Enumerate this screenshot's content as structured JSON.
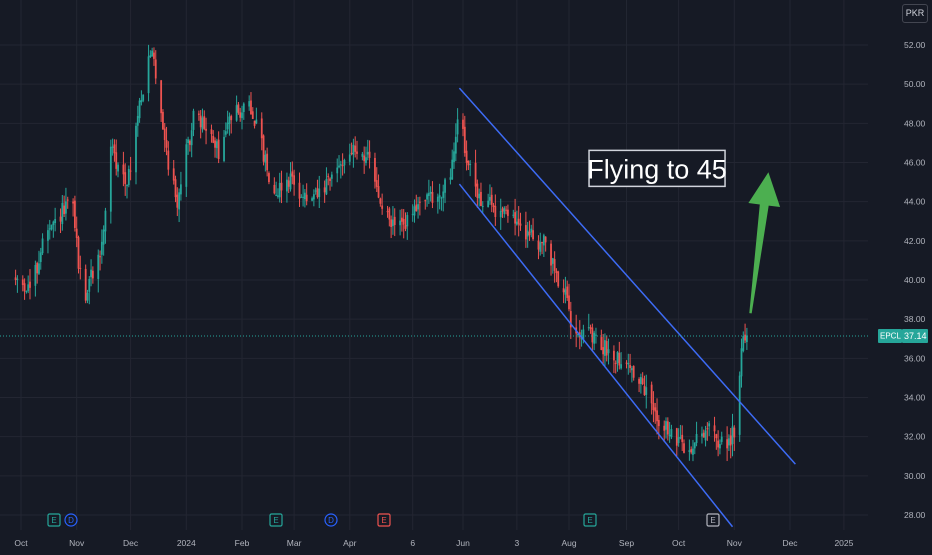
{
  "currency_button": "PKR",
  "annotation_text": "Flying to 45",
  "price_label": {
    "symbol": "EPCL",
    "value": "37.14"
  },
  "colors": {
    "background": "#161a25",
    "up": "#26a69a",
    "down": "#ef5350",
    "channel": "#3d6bf5",
    "arrow": "#4caf50",
    "grid": "#232632",
    "axis_text": "#b2b5be",
    "price_label_bg": "#26a69a"
  },
  "events": [
    {
      "letter": "E",
      "color": "#26a69a",
      "shape": "square",
      "date": "Oct 2023"
    },
    {
      "letter": "D",
      "color": "#2962ff",
      "shape": "circle",
      "date": "Oct 2023"
    },
    {
      "letter": "E",
      "color": "#26a69a",
      "shape": "square",
      "date": "Feb 2024"
    },
    {
      "letter": "D",
      "color": "#2962ff",
      "shape": "circle",
      "date": "Mar 2024"
    },
    {
      "letter": "E",
      "color": "#ef5350",
      "shape": "square",
      "date": "Apr 2024"
    },
    {
      "letter": "E",
      "color": "#26a69a",
      "shape": "square",
      "date": "Aug 2024"
    },
    {
      "letter": "E",
      "color": "#b2b5be",
      "shape": "square",
      "date": "Oct 2024"
    }
  ],
  "chart_data": {
    "type": "candlestick",
    "symbol": "EPCL",
    "currency": "PKR",
    "last_price": 37.14,
    "ylim": [
      27.5,
      54.5
    ],
    "y_ticks": [
      "28.00",
      "30.00",
      "32.00",
      "34.00",
      "36.00",
      "38.00",
      "40.00",
      "42.00",
      "44.00",
      "46.00",
      "48.00",
      "50.00",
      "52.00"
    ],
    "x_ticks": [
      {
        "label": "Oct",
        "date": "2023-10-01"
      },
      {
        "label": "Nov",
        "date": "2023-11-01"
      },
      {
        "label": "Dec",
        "date": "2023-12-01"
      },
      {
        "label": "2024",
        "date": "2024-01-01"
      },
      {
        "label": "Feb",
        "date": "2024-02-01"
      },
      {
        "label": "Mar",
        "date": "2024-03-01"
      },
      {
        "label": "Apr",
        "date": "2024-04-01"
      },
      {
        "label": "6",
        "date": "2024-05-06"
      },
      {
        "label": "Jun",
        "date": "2024-06-03"
      },
      {
        "label": "3",
        "date": "2024-07-03"
      },
      {
        "label": "Aug",
        "date": "2024-08-01"
      },
      {
        "label": "Sep",
        "date": "2024-09-02"
      },
      {
        "label": "Oct",
        "date": "2024-10-01"
      },
      {
        "label": "Nov",
        "date": "2024-11-01"
      },
      {
        "label": "Dec",
        "date": "2024-12-02"
      },
      {
        "label": "2025",
        "date": "2025-01-01"
      }
    ],
    "price_path": [
      [
        "2023-09-28",
        40.0
      ],
      [
        "2023-10-02",
        39.8
      ],
      [
        "2023-10-06",
        39.6
      ],
      [
        "2023-10-10",
        40.6
      ],
      [
        "2023-10-13",
        42.0
      ],
      [
        "2023-10-18",
        42.5
      ],
      [
        "2023-10-24",
        43.5
      ],
      [
        "2023-10-30",
        43.8
      ],
      [
        "2023-11-02",
        40.8
      ],
      [
        "2023-11-06",
        39.2
      ],
      [
        "2023-11-09",
        40.2
      ],
      [
        "2023-11-13",
        41.0
      ],
      [
        "2023-11-16",
        42.4
      ],
      [
        "2023-11-20",
        47.0
      ],
      [
        "2023-11-23",
        45.8
      ],
      [
        "2023-11-28",
        45.2
      ],
      [
        "2023-12-01",
        45.5
      ],
      [
        "2023-12-04",
        47.8
      ],
      [
        "2023-12-07",
        49.5
      ],
      [
        "2023-12-11",
        51.0
      ],
      [
        "2023-12-13",
        51.6
      ],
      [
        "2023-12-15",
        50.5
      ],
      [
        "2023-12-19",
        48.0
      ],
      [
        "2023-12-22",
        46.0
      ],
      [
        "2023-12-27",
        44.0
      ],
      [
        "2024-01-01",
        46.5
      ],
      [
        "2024-01-05",
        48.2
      ],
      [
        "2024-01-10",
        48.0
      ],
      [
        "2024-01-15",
        47.2
      ],
      [
        "2024-01-19",
        46.5
      ],
      [
        "2024-01-24",
        47.8
      ],
      [
        "2024-01-29",
        49.2
      ],
      [
        "2024-02-01",
        48.5
      ],
      [
        "2024-02-05",
        49.0
      ],
      [
        "2024-02-09",
        48.0
      ],
      [
        "2024-02-14",
        46.0
      ],
      [
        "2024-02-19",
        44.5
      ],
      [
        "2024-02-23",
        44.8
      ],
      [
        "2024-02-28",
        45.2
      ],
      [
        "2024-03-04",
        44.6
      ],
      [
        "2024-03-08",
        44.0
      ],
      [
        "2024-03-13",
        44.2
      ],
      [
        "2024-03-18",
        44.6
      ],
      [
        "2024-03-22",
        45.2
      ],
      [
        "2024-03-27",
        46.0
      ],
      [
        "2024-04-01",
        46.6
      ],
      [
        "2024-04-05",
        46.5
      ],
      [
        "2024-04-10",
        46.4
      ],
      [
        "2024-04-15",
        45.0
      ],
      [
        "2024-04-19",
        43.6
      ],
      [
        "2024-04-24",
        42.9
      ],
      [
        "2024-04-29",
        42.8
      ],
      [
        "2024-05-03",
        43.0
      ],
      [
        "2024-05-08",
        43.5
      ],
      [
        "2024-05-13",
        44.5
      ],
      [
        "2024-05-17",
        44.0
      ],
      [
        "2024-05-22",
        44.5
      ],
      [
        "2024-05-27",
        45.0
      ],
      [
        "2024-05-30",
        47.5
      ],
      [
        "2024-06-01",
        49.0
      ],
      [
        "2024-06-04",
        46.8
      ],
      [
        "2024-06-07",
        45.5
      ],
      [
        "2024-06-12",
        44.2
      ],
      [
        "2024-06-17",
        44.0
      ],
      [
        "2024-06-21",
        43.5
      ],
      [
        "2024-06-26",
        43.8
      ],
      [
        "2024-07-01",
        43.2
      ],
      [
        "2024-07-05",
        42.5
      ],
      [
        "2024-07-10",
        42.4
      ],
      [
        "2024-07-15",
        42.0
      ],
      [
        "2024-07-19",
        41.8
      ],
      [
        "2024-07-24",
        40.5
      ],
      [
        "2024-07-29",
        39.5
      ],
      [
        "2024-08-02",
        38.0
      ],
      [
        "2024-08-07",
        37.5
      ],
      [
        "2024-08-12",
        37.2
      ],
      [
        "2024-08-16",
        36.8
      ],
      [
        "2024-08-21",
        36.5
      ],
      [
        "2024-08-26",
        36.2
      ],
      [
        "2024-08-30",
        36.0
      ],
      [
        "2024-09-04",
        35.5
      ],
      [
        "2024-09-09",
        34.8
      ],
      [
        "2024-09-13",
        34.2
      ],
      [
        "2024-09-18",
        33.2
      ],
      [
        "2024-09-23",
        32.6
      ],
      [
        "2024-09-27",
        32.0
      ],
      [
        "2024-10-02",
        31.6
      ],
      [
        "2024-10-07",
        31.2
      ],
      [
        "2024-10-11",
        31.8
      ],
      [
        "2024-10-16",
        32.5
      ],
      [
        "2024-10-21",
        32.0
      ],
      [
        "2024-10-25",
        31.6
      ],
      [
        "2024-10-30",
        32.0
      ],
      [
        "2024-11-01",
        32.2
      ],
      [
        "2024-11-04",
        35.2
      ],
      [
        "2024-11-06",
        37.5
      ],
      [
        "2024-11-08",
        37.14
      ]
    ],
    "trend_lines": [
      {
        "name": "channel-upper",
        "from": [
          "2024-06-01",
          49.8
        ],
        "to": [
          "2024-12-05",
          30.6
        ]
      },
      {
        "name": "channel-lower",
        "from": [
          "2024-06-01",
          44.9
        ],
        "to": [
          "2024-10-31",
          27.4
        ]
      }
    ],
    "arrow": {
      "from": [
        "2024-11-10",
        38.3
      ],
      "to": [
        "2024-11-20",
        45.5
      ]
    },
    "annotation": {
      "text": "Flying to 45",
      "anchor": [
        "2024-09-19",
        45.7
      ]
    }
  }
}
